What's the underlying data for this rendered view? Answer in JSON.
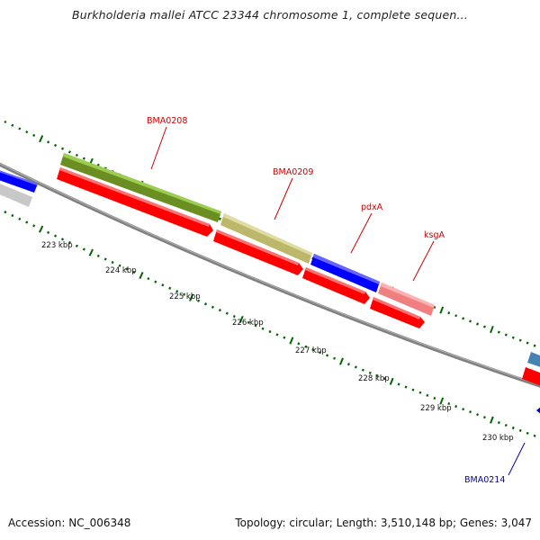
{
  "title": "Burkholderia mallei ATCC 23344 chromosome 1, complete sequen...",
  "accession": "Accession: NC_006348",
  "topology": "Topology: circular; Length: 3,510,148 bp; Genes: 3,047",
  "scale_labels": [
    "223 kbp",
    "224 kbp",
    "225 kbp",
    "226 kbp",
    "227 kbp",
    "228 kbp",
    "229 kbp",
    "230 kbp"
  ],
  "gene_labels": [
    {
      "name": "BMA0208",
      "color": "#cc0000"
    },
    {
      "name": "BMA0209",
      "color": "#cc0000"
    },
    {
      "name": "pdxA",
      "color": "#cc0000"
    },
    {
      "name": "ksgA",
      "color": "#cc0000"
    },
    {
      "name": "BMA0214",
      "color": "#0000aa"
    }
  ],
  "colors": {
    "backbone": "#808080",
    "cds_arrow": "#ff0000",
    "feature_green": "#6b8e23",
    "feature_khaki": "#bdb76b",
    "feature_blue": "#0000ff",
    "feature_pink": "#f08080",
    "feature_grey": "#c8c8c8",
    "feature_steelblue": "#4682b4",
    "tick": "#006400"
  }
}
